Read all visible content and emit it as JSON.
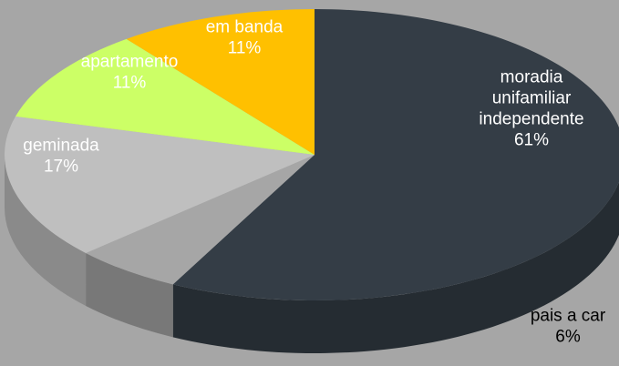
{
  "chart_data": {
    "type": "pie",
    "title": "",
    "legend": "none",
    "slices": [
      {
        "name": "moradia unifamiliar independente",
        "label_lines": [
          "moradia",
          "unifamiliar",
          "independente",
          "61%"
        ],
        "value": 61,
        "color": "#343d46",
        "label_color": "#ffffff"
      },
      {
        "name": "pais a car",
        "label_lines": [
          "pais a car",
          "6%"
        ],
        "value": 6,
        "color": "#a6a6a6",
        "label_color": "#000000"
      },
      {
        "name": "geminada",
        "label_lines": [
          "geminada",
          "17%"
        ],
        "value": 17,
        "color": "#bfbfbf",
        "label_color": "#ffffff"
      },
      {
        "name": "apartamento",
        "label_lines": [
          "apartamento",
          "11%"
        ],
        "value": 11,
        "color": "#ccff66",
        "label_color": "#ffffff"
      },
      {
        "name": "em banda",
        "label_lines": [
          "em banda",
          "11%"
        ],
        "value": 11,
        "color": "#ffc000",
        "label_color": "#ffffff"
      }
    ]
  }
}
